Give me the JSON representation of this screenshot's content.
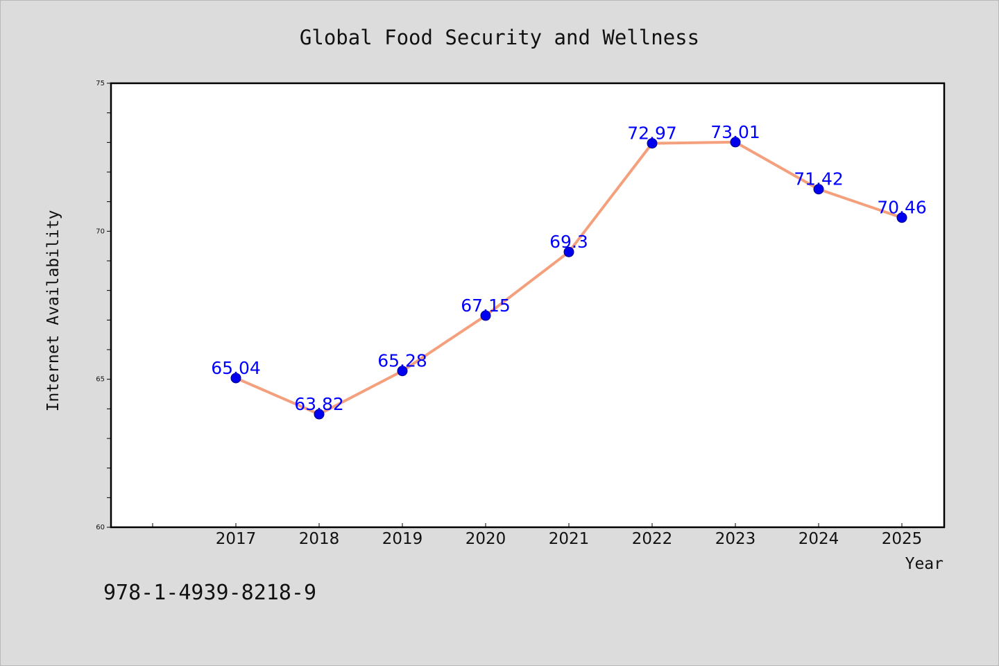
{
  "chart_data": {
    "type": "line",
    "title": "Global Food Security and Wellness",
    "xlabel": "Year",
    "ylabel": "Internet Availability",
    "categories": [
      "2017",
      "2018",
      "2019",
      "2020",
      "2021",
      "2022",
      "2023",
      "2024",
      "2025"
    ],
    "series": [
      {
        "values": [
          65.04,
          63.82,
          65.28,
          67.15,
          69.3,
          72.97,
          73.01,
          71.42,
          70.46
        ],
        "labels": [
          "65.04",
          "63.82",
          "65.28",
          "67.15",
          "69.3",
          "72.97",
          "73.01",
          "71.42",
          "70.46"
        ],
        "line_color": "#f4a07c",
        "marker_color": "#0000ee"
      }
    ],
    "ylim": [
      60,
      75
    ],
    "yticks": [
      "60",
      "65",
      "70",
      "75"
    ],
    "grid": false,
    "legend": "none"
  },
  "footnote": "978-1-4939-8218-9",
  "colors": {
    "background": "#dcdcdc",
    "plot_background": "#ffffff",
    "label_color": "#0000ff"
  }
}
